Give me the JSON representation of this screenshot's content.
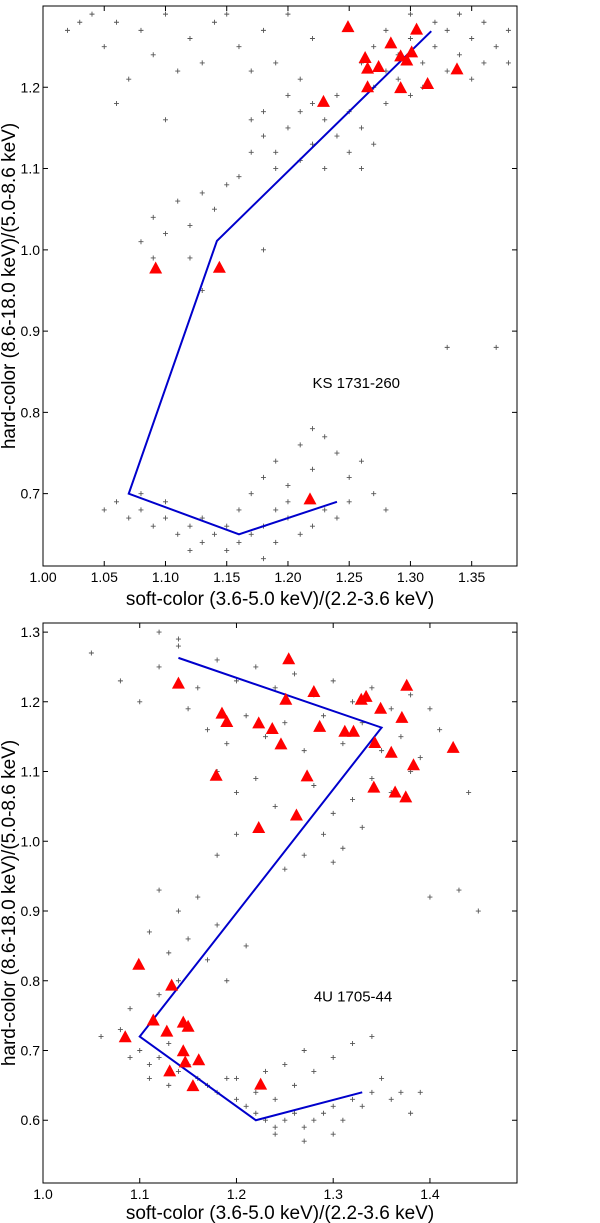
{
  "chart_data": [
    {
      "type": "scatter",
      "xlabel": "soft-color (3.6-5.0 keV)/(2.2-3.6 keV)",
      "ylabel": "hard-color  (8.6-18.0 keV)/(5.0-8.6 keV)",
      "xlim": [
        1.0,
        1.387
      ],
      "ylim": [
        0.611,
        1.3
      ],
      "xticks": [
        "1.00",
        "1.05",
        "1.10",
        "1.15",
        "1.20",
        "1.25",
        "1.30",
        "1.35"
      ],
      "yticks": [
        "0.7",
        "0.8",
        "0.9",
        "1.0",
        "1.1",
        "1.2"
      ],
      "annotation": {
        "text": "KS 1731-260",
        "x": 1.22,
        "y": 0.83
      },
      "grid": false,
      "colors": {
        "points": "#555555",
        "triangles": "#ff0000",
        "track": "#0000cc"
      },
      "points": [
        [
          1.04,
          1.29
        ],
        [
          1.06,
          1.28
        ],
        [
          1.08,
          1.27
        ],
        [
          1.1,
          1.29
        ],
        [
          1.12,
          1.26
        ],
        [
          1.14,
          1.28
        ],
        [
          1.05,
          1.25
        ],
        [
          1.09,
          1.24
        ],
        [
          1.11,
          1.22
        ],
        [
          1.07,
          1.21
        ],
        [
          1.13,
          1.23
        ],
        [
          1.16,
          1.25
        ],
        [
          1.18,
          1.27
        ],
        [
          1.2,
          1.29
        ],
        [
          1.22,
          1.26
        ],
        [
          1.17,
          1.22
        ],
        [
          1.03,
          1.28
        ],
        [
          1.15,
          1.29
        ],
        [
          1.19,
          1.23
        ],
        [
          1.21,
          1.21
        ],
        [
          1.06,
          1.18
        ],
        [
          1.1,
          1.16
        ],
        [
          1.02,
          1.27
        ],
        [
          1.17,
          1.16
        ],
        [
          1.18,
          1.14
        ],
        [
          1.19,
          1.12
        ],
        [
          1.2,
          1.15
        ],
        [
          1.21,
          1.11
        ],
        [
          1.22,
          1.13
        ],
        [
          1.23,
          1.16
        ],
        [
          1.24,
          1.14
        ],
        [
          1.19,
          1.1
        ],
        [
          1.21,
          1.17
        ],
        [
          1.25,
          1.12
        ],
        [
          1.26,
          1.1
        ],
        [
          1.23,
          1.1
        ],
        [
          1.18,
          1.17
        ],
        [
          1.2,
          1.19
        ],
        [
          1.22,
          1.18
        ],
        [
          1.24,
          1.19
        ],
        [
          1.26,
          1.15
        ],
        [
          1.27,
          1.13
        ],
        [
          1.17,
          1.12
        ],
        [
          1.28,
          1.18
        ],
        [
          1.25,
          1.17
        ],
        [
          1.27,
          1.25
        ],
        [
          1.28,
          1.27
        ],
        [
          1.29,
          1.24
        ],
        [
          1.3,
          1.26
        ],
        [
          1.31,
          1.23
        ],
        [
          1.32,
          1.25
        ],
        [
          1.33,
          1.27
        ],
        [
          1.34,
          1.24
        ],
        [
          1.35,
          1.26
        ],
        [
          1.36,
          1.23
        ],
        [
          1.37,
          1.25
        ],
        [
          1.38,
          1.27
        ],
        [
          1.29,
          1.21
        ],
        [
          1.31,
          1.2
        ],
        [
          1.33,
          1.22
        ],
        [
          1.35,
          1.21
        ],
        [
          1.28,
          1.22
        ],
        [
          1.3,
          1.29
        ],
        [
          1.32,
          1.28
        ],
        [
          1.34,
          1.29
        ],
        [
          1.26,
          1.23
        ],
        [
          1.36,
          1.28
        ],
        [
          1.38,
          1.23
        ],
        [
          1.3,
          1.19
        ],
        [
          1.27,
          1.2
        ],
        [
          1.09,
          1.04
        ],
        [
          1.1,
          1.02
        ],
        [
          1.11,
          1.06
        ],
        [
          1.12,
          1.03
        ],
        [
          1.13,
          1.07
        ],
        [
          1.14,
          1.05
        ],
        [
          1.12,
          0.99
        ],
        [
          1.09,
          0.99
        ],
        [
          1.15,
          1.08
        ],
        [
          1.16,
          1.09
        ],
        [
          1.13,
          0.95
        ],
        [
          1.08,
          1.01
        ],
        [
          1.18,
          1.0
        ],
        [
          1.33,
          0.88
        ],
        [
          1.37,
          0.88
        ],
        [
          1.05,
          0.68
        ],
        [
          1.06,
          0.69
        ],
        [
          1.07,
          0.67
        ],
        [
          1.08,
          0.68
        ],
        [
          1.09,
          0.66
        ],
        [
          1.1,
          0.67
        ],
        [
          1.11,
          0.65
        ],
        [
          1.12,
          0.66
        ],
        [
          1.13,
          0.64
        ],
        [
          1.14,
          0.65
        ],
        [
          1.15,
          0.66
        ],
        [
          1.16,
          0.64
        ],
        [
          1.17,
          0.65
        ],
        [
          1.18,
          0.66
        ],
        [
          1.19,
          0.64
        ],
        [
          1.2,
          0.67
        ],
        [
          1.21,
          0.65
        ],
        [
          1.22,
          0.66
        ],
        [
          1.23,
          0.68
        ],
        [
          1.24,
          0.67
        ],
        [
          1.25,
          0.69
        ],
        [
          1.12,
          0.63
        ],
        [
          1.15,
          0.63
        ],
        [
          1.18,
          0.62
        ],
        [
          1.17,
          0.7
        ],
        [
          1.18,
          0.72
        ],
        [
          1.19,
          0.74
        ],
        [
          1.2,
          0.71
        ],
        [
          1.21,
          0.76
        ],
        [
          1.22,
          0.73
        ],
        [
          1.23,
          0.77
        ],
        [
          1.24,
          0.75
        ],
        [
          1.25,
          0.72
        ],
        [
          1.26,
          0.74
        ],
        [
          1.22,
          0.78
        ],
        [
          1.2,
          0.69
        ],
        [
          1.19,
          0.68
        ],
        [
          1.16,
          0.68
        ],
        [
          1.13,
          0.67
        ],
        [
          1.1,
          0.69
        ],
        [
          1.27,
          0.7
        ],
        [
          1.08,
          0.7
        ],
        [
          1.28,
          0.68
        ]
      ],
      "triangles": [
        [
          1.249,
          1.274
        ],
        [
          1.305,
          1.271
        ],
        [
          1.284,
          1.254
        ],
        [
          1.263,
          1.236
        ],
        [
          1.265,
          1.223
        ],
        [
          1.274,
          1.225
        ],
        [
          1.292,
          1.238
        ],
        [
          1.297,
          1.233
        ],
        [
          1.301,
          1.243
        ],
        [
          1.265,
          1.2
        ],
        [
          1.292,
          1.199
        ],
        [
          1.314,
          1.204
        ],
        [
          1.338,
          1.222
        ],
        [
          1.229,
          1.182
        ],
        [
          1.092,
          0.977
        ],
        [
          1.144,
          0.978
        ],
        [
          1.218,
          0.693
        ]
      ],
      "track": [
        [
          1.24,
          0.69
        ],
        [
          1.16,
          0.65
        ],
        [
          1.07,
          0.7
        ],
        [
          1.142,
          1.011
        ],
        [
          1.317,
          1.269
        ]
      ]
    },
    {
      "type": "scatter",
      "xlabel": "soft-color (3.6-5.0 keV)/(2.2-3.6 keV)",
      "ylabel": "hard-color (8.6-18.0 keV)/(5.0-8.6 keV)",
      "xlim": [
        1.0,
        1.49
      ],
      "ylim": [
        0.51,
        1.313
      ],
      "xticks": [
        "1.0",
        "1.1",
        "1.2",
        "1.3",
        "1.4"
      ],
      "yticks": [
        "0.6",
        "0.7",
        "0.8",
        "0.9",
        "1.0",
        "1.1",
        "1.2",
        "1.3"
      ],
      "annotation": {
        "text": "4U 1705-44",
        "x": 1.28,
        "y": 0.77
      },
      "grid": false,
      "colors": {
        "points": "#555555",
        "triangles": "#ff0000",
        "track": "#0000cc"
      },
      "points": [
        [
          1.05,
          1.27
        ],
        [
          1.08,
          1.23
        ],
        [
          1.1,
          1.2
        ],
        [
          1.12,
          1.25
        ],
        [
          1.14,
          1.28
        ],
        [
          1.16,
          1.22
        ],
        [
          1.18,
          1.26
        ],
        [
          1.2,
          1.23
        ],
        [
          1.22,
          1.25
        ],
        [
          1.24,
          1.22
        ],
        [
          1.26,
          1.24
        ],
        [
          1.28,
          1.21
        ],
        [
          1.3,
          1.23
        ],
        [
          1.32,
          1.2
        ],
        [
          1.34,
          1.22
        ],
        [
          1.36,
          1.19
        ],
        [
          1.38,
          1.21
        ],
        [
          1.4,
          1.19
        ],
        [
          1.15,
          1.19
        ],
        [
          1.17,
          1.16
        ],
        [
          1.19,
          1.14
        ],
        [
          1.21,
          1.18
        ],
        [
          1.23,
          1.15
        ],
        [
          1.25,
          1.17
        ],
        [
          1.27,
          1.13
        ],
        [
          1.29,
          1.18
        ],
        [
          1.31,
          1.14
        ],
        [
          1.33,
          1.17
        ],
        [
          1.35,
          1.13
        ],
        [
          1.37,
          1.15
        ],
        [
          1.39,
          1.12
        ],
        [
          1.41,
          1.16
        ],
        [
          1.18,
          1.1
        ],
        [
          1.2,
          1.07
        ],
        [
          1.22,
          1.09
        ],
        [
          1.24,
          1.05
        ],
        [
          1.28,
          1.08
        ],
        [
          1.3,
          1.04
        ],
        [
          1.32,
          1.06
        ],
        [
          1.34,
          1.09
        ],
        [
          1.36,
          1.07
        ],
        [
          1.38,
          1.1
        ],
        [
          1.29,
          1.01
        ],
        [
          1.31,
          0.99
        ],
        [
          1.33,
          1.02
        ],
        [
          1.27,
          0.98
        ],
        [
          1.3,
          0.97
        ],
        [
          1.2,
          1.01
        ],
        [
          1.18,
          0.98
        ],
        [
          1.25,
          0.96
        ],
        [
          1.14,
          1.29
        ],
        [
          1.12,
          1.3
        ],
        [
          1.44,
          1.07
        ],
        [
          1.43,
          0.93
        ],
        [
          1.45,
          0.9
        ],
        [
          1.4,
          0.92
        ],
        [
          1.12,
          0.93
        ],
        [
          1.14,
          0.9
        ],
        [
          1.16,
          0.92
        ],
        [
          1.18,
          0.88
        ],
        [
          1.15,
          0.86
        ],
        [
          1.13,
          0.84
        ],
        [
          1.11,
          0.87
        ],
        [
          1.17,
          0.83
        ],
        [
          1.19,
          0.8
        ],
        [
          1.14,
          0.8
        ],
        [
          1.12,
          0.78
        ],
        [
          1.21,
          0.85
        ],
        [
          1.09,
          0.76
        ],
        [
          1.06,
          0.72
        ],
        [
          1.08,
          0.73
        ],
        [
          1.1,
          0.7
        ],
        [
          1.11,
          0.68
        ],
        [
          1.12,
          0.69
        ],
        [
          1.13,
          0.71
        ],
        [
          1.14,
          0.67
        ],
        [
          1.15,
          0.68
        ],
        [
          1.16,
          0.66
        ],
        [
          1.17,
          0.65
        ],
        [
          1.18,
          0.64
        ],
        [
          1.19,
          0.66
        ],
        [
          1.2,
          0.63
        ],
        [
          1.21,
          0.62
        ],
        [
          1.22,
          0.61
        ],
        [
          1.23,
          0.6
        ],
        [
          1.24,
          0.59
        ],
        [
          1.25,
          0.6
        ],
        [
          1.26,
          0.61
        ],
        [
          1.27,
          0.59
        ],
        [
          1.28,
          0.6
        ],
        [
          1.29,
          0.61
        ],
        [
          1.3,
          0.62
        ],
        [
          1.31,
          0.6
        ],
        [
          1.32,
          0.63
        ],
        [
          1.33,
          0.62
        ],
        [
          1.34,
          0.64
        ],
        [
          1.35,
          0.66
        ],
        [
          1.24,
          0.63
        ],
        [
          1.26,
          0.65
        ],
        [
          1.28,
          0.67
        ],
        [
          1.3,
          0.69
        ],
        [
          1.32,
          0.71
        ],
        [
          1.34,
          0.72
        ],
        [
          1.27,
          0.7
        ],
        [
          1.25,
          0.68
        ],
        [
          1.22,
          0.64
        ],
        [
          1.2,
          0.66
        ],
        [
          1.11,
          0.66
        ],
        [
          1.13,
          0.65
        ],
        [
          1.09,
          0.69
        ],
        [
          1.27,
          0.57
        ],
        [
          1.24,
          0.58
        ],
        [
          1.3,
          0.58
        ],
        [
          1.38,
          0.61
        ],
        [
          1.37,
          0.64
        ],
        [
          1.39,
          0.64
        ],
        [
          1.23,
          0.67
        ],
        [
          1.36,
          0.63
        ]
      ],
      "triangles": [
        [
          1.14,
          1.226
        ],
        [
          1.254,
          1.261
        ],
        [
          1.28,
          1.214
        ],
        [
          1.251,
          1.203
        ],
        [
          1.329,
          1.203
        ],
        [
          1.334,
          1.207
        ],
        [
          1.376,
          1.223
        ],
        [
          1.349,
          1.19
        ],
        [
          1.371,
          1.177
        ],
        [
          1.185,
          1.183
        ],
        [
          1.19,
          1.171
        ],
        [
          1.223,
          1.169
        ],
        [
          1.237,
          1.161
        ],
        [
          1.286,
          1.164
        ],
        [
          1.312,
          1.157
        ],
        [
          1.321,
          1.157
        ],
        [
          1.246,
          1.139
        ],
        [
          1.343,
          1.141
        ],
        [
          1.36,
          1.127
        ],
        [
          1.424,
          1.134
        ],
        [
          1.383,
          1.109
        ],
        [
          1.179,
          1.094
        ],
        [
          1.273,
          1.093
        ],
        [
          1.342,
          1.077
        ],
        [
          1.364,
          1.07
        ],
        [
          1.375,
          1.063
        ],
        [
          1.262,
          1.037
        ],
        [
          1.223,
          1.019
        ],
        [
          1.099,
          0.823
        ],
        [
          1.133,
          0.793
        ],
        [
          1.085,
          0.719
        ],
        [
          1.114,
          0.743
        ],
        [
          1.128,
          0.727
        ],
        [
          1.145,
          0.74
        ],
        [
          1.15,
          0.734
        ],
        [
          1.145,
          0.699
        ],
        [
          1.147,
          0.683
        ],
        [
          1.161,
          0.686
        ],
        [
          1.131,
          0.67
        ],
        [
          1.155,
          0.649
        ],
        [
          1.225,
          0.651
        ]
      ],
      "track": [
        [
          1.33,
          0.64
        ],
        [
          1.22,
          0.6
        ],
        [
          1.1,
          0.72
        ],
        [
          1.35,
          1.163
        ],
        [
          1.14,
          1.263
        ]
      ]
    }
  ]
}
